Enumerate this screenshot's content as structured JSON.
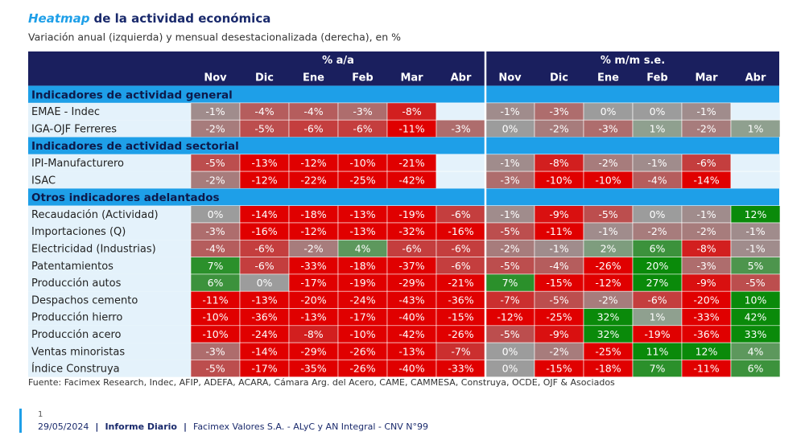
{
  "header": {
    "title_em": "Heatmap",
    "title_rest": "de la actividad económica",
    "subtitle": "Variación anual (izquierda) y mensual desestacionalizada (derecha), en %"
  },
  "table": {
    "groups": [
      "% a/a",
      "% m/m s.e."
    ],
    "months": [
      "Nov",
      "Dic",
      "Ene",
      "Feb",
      "Mar",
      "Abr"
    ],
    "sections": [
      {
        "title": "Indicadores de actividad general",
        "rows": [
          {
            "label": "EMAE - Indec",
            "cells": [
              "-1%",
              "-4%",
              "-4%",
              "-3%",
              "-8%",
              null,
              "-1%",
              "-3%",
              "0%",
              "0%",
              "-1%",
              null
            ]
          },
          {
            "label": "IGA-OJF Ferreres",
            "cells": [
              "-2%",
              "-5%",
              "-6%",
              "-6%",
              "-11%",
              "-3%",
              "0%",
              "-2%",
              "-3%",
              "1%",
              "-2%",
              "1%"
            ]
          }
        ]
      },
      {
        "title": "Indicadores de actividad sectorial",
        "rows": [
          {
            "label": "IPI-Manufacturero",
            "cells": [
              "-5%",
              "-13%",
              "-12%",
              "-10%",
              "-21%",
              null,
              "-1%",
              "-8%",
              "-2%",
              "-1%",
              "-6%",
              null
            ]
          },
          {
            "label": "ISAC",
            "cells": [
              "-2%",
              "-12%",
              "-22%",
              "-25%",
              "-42%",
              null,
              "-3%",
              "-10%",
              "-10%",
              "-4%",
              "-14%",
              null
            ]
          }
        ]
      },
      {
        "title": "Otros indicadores adelantados",
        "rows": [
          {
            "label": "Recaudación (Actividad)",
            "cells": [
              "0%",
              "-14%",
              "-18%",
              "-13%",
              "-19%",
              "-6%",
              "-1%",
              "-9%",
              "-5%",
              "0%",
              "-1%",
              "12%"
            ]
          },
          {
            "label": "Importaciones (Q)",
            "cells": [
              "-3%",
              "-16%",
              "-12%",
              "-13%",
              "-32%",
              "-16%",
              "-5%",
              "-11%",
              "-1%",
              "-2%",
              "-2%",
              "-1%"
            ]
          },
          {
            "label": "Electricidad (Industrias)",
            "cells": [
              "-4%",
              "-6%",
              "-2%",
              "4%",
              "-6%",
              "-6%",
              "-2%",
              "-1%",
              "2%",
              "6%",
              "-8%",
              "-1%"
            ]
          },
          {
            "label": "Patentamientos",
            "cells": [
              "7%",
              "-6%",
              "-33%",
              "-18%",
              "-37%",
              "-6%",
              "-5%",
              "-4%",
              "-26%",
              "20%",
              "-3%",
              "5%"
            ]
          },
          {
            "label": "Producción autos",
            "cells": [
              "6%",
              "0%",
              "-17%",
              "-19%",
              "-29%",
              "-21%",
              "7%",
              "-15%",
              "-12%",
              "27%",
              "-9%",
              "-5%"
            ]
          },
          {
            "label": "Despachos cemento",
            "cells": [
              "-11%",
              "-13%",
              "-20%",
              "-24%",
              "-43%",
              "-36%",
              "-7%",
              "-5%",
              "-2%",
              "-6%",
              "-20%",
              "10%"
            ]
          },
          {
            "label": "Producción hierro",
            "cells": [
              "-10%",
              "-36%",
              "-13%",
              "-17%",
              "-40%",
              "-15%",
              "-12%",
              "-25%",
              "32%",
              "1%",
              "-33%",
              "42%"
            ]
          },
          {
            "label": "Producción acero",
            "cells": [
              "-10%",
              "-24%",
              "-8%",
              "-10%",
              "-42%",
              "-26%",
              "-5%",
              "-9%",
              "32%",
              "-19%",
              "-36%",
              "33%"
            ]
          },
          {
            "label": "Ventas minoristas",
            "cells": [
              "-3%",
              "-14%",
              "-29%",
              "-26%",
              "-13%",
              "-7%",
              "0%",
              "-2%",
              "-25%",
              "11%",
              "12%",
              "4%"
            ]
          },
          {
            "label": "Índice Construya",
            "cells": [
              "-5%",
              "-17%",
              "-35%",
              "-26%",
              "-40%",
              "-33%",
              "0%",
              "-15%",
              "-18%",
              "7%",
              "-11%",
              "6%"
            ]
          }
        ]
      }
    ]
  },
  "footer": {
    "source": "Fuente: Facimex Research, Indec, AFIP, ADEFA, ACARA, Cámara Arg. del Acero, CAME, CAMMESA, Construya, OCDE, OJF & Asociados",
    "page": "1",
    "date": "29/05/2024",
    "report": "Informe Diario",
    "company": "Facimex Valores S.A. - ALyC y AN Integral - CNV N°99"
  }
}
